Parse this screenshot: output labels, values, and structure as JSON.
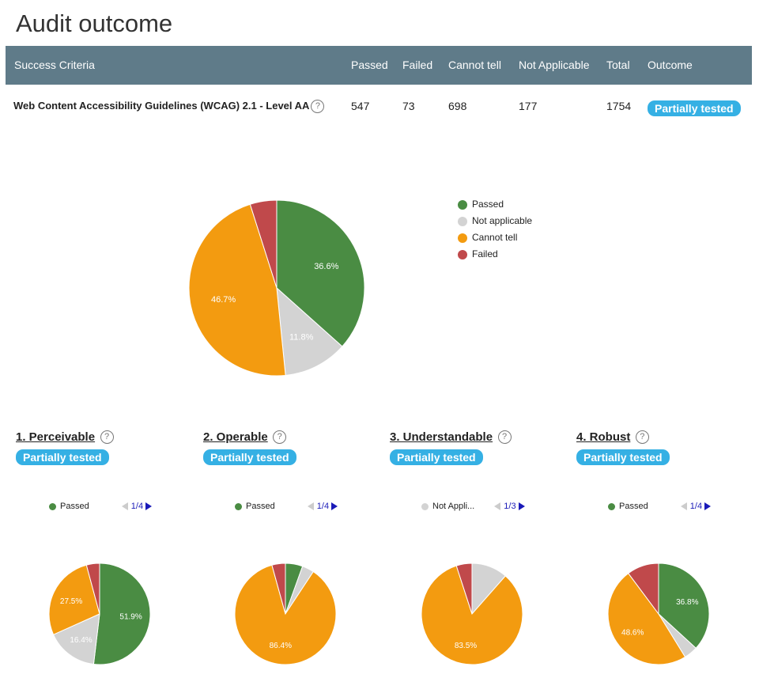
{
  "page": {
    "title": "Audit outcome"
  },
  "table": {
    "headers": {
      "criteria": "Success Criteria",
      "passed": "Passed",
      "failed": "Failed",
      "cannot_tell": "Cannot tell",
      "not_applicable": "Not Applicable",
      "total": "Total",
      "outcome": "Outcome"
    },
    "row": {
      "criteria": "Web Content Accessibility Guidelines (WCAG) 2.1 - Level AA",
      "passed": "547",
      "failed": "73",
      "cannot_tell": "698",
      "not_applicable": "177",
      "total": "1754",
      "outcome": "Partially tested"
    }
  },
  "help_glyph": "?",
  "colors": {
    "passed": "#4a8c43",
    "not_applicable": "#d3d3d3",
    "cannot_tell": "#f39b10",
    "failed": "#c0494b",
    "badge": "#35b0e4",
    "header": "#5f7b89"
  },
  "chart_data": [
    {
      "type": "pie",
      "id": "main",
      "legend": [
        "Passed",
        "Not applicable",
        "Cannot tell",
        "Failed"
      ],
      "slices": [
        {
          "name": "Passed",
          "value": 36.6,
          "label": "36.6%"
        },
        {
          "name": "Not applicable",
          "value": 11.8,
          "label": "11.8%"
        },
        {
          "name": "Cannot tell",
          "value": 46.7,
          "label": "46.7%"
        },
        {
          "name": "Failed",
          "value": 4.9,
          "label": ""
        }
      ]
    },
    {
      "type": "pie",
      "id": "perceivable",
      "slices": [
        {
          "name": "Passed",
          "value": 51.9,
          "label": "51.9%"
        },
        {
          "name": "Not applicable",
          "value": 16.4,
          "label": "16.4%"
        },
        {
          "name": "Cannot tell",
          "value": 27.5,
          "label": "27.5%"
        },
        {
          "name": "Failed",
          "value": 4.2,
          "label": ""
        }
      ]
    },
    {
      "type": "pie",
      "id": "operable",
      "slices": [
        {
          "name": "Passed",
          "value": 5.5,
          "label": ""
        },
        {
          "name": "Not applicable",
          "value": 3.8,
          "label": ""
        },
        {
          "name": "Cannot tell",
          "value": 86.4,
          "label": "86.4%"
        },
        {
          "name": "Failed",
          "value": 4.3,
          "label": ""
        }
      ]
    },
    {
      "type": "pie",
      "id": "understandable",
      "slices": [
        {
          "name": "Passed",
          "value": 0,
          "label": ""
        },
        {
          "name": "Not applicable",
          "value": 11.5,
          "label": ""
        },
        {
          "name": "Cannot tell",
          "value": 83.5,
          "label": "83.5%"
        },
        {
          "name": "Failed",
          "value": 5.0,
          "label": ""
        }
      ]
    },
    {
      "type": "pie",
      "id": "robust",
      "slices": [
        {
          "name": "Passed",
          "value": 36.8,
          "label": "36.8%"
        },
        {
          "name": "Not applicable",
          "value": 4.4,
          "label": ""
        },
        {
          "name": "Cannot tell",
          "value": 48.6,
          "label": "48.6%"
        },
        {
          "name": "Failed",
          "value": 10.2,
          "label": ""
        }
      ]
    }
  ],
  "principles": [
    {
      "title": "1. Perceivable",
      "outcome": "Partially tested",
      "legend_label": "Passed",
      "legend_color": "#4a8c43",
      "page": "1/4"
    },
    {
      "title": "2. Operable",
      "outcome": "Partially tested",
      "legend_label": "Passed",
      "legend_color": "#4a8c43",
      "page": "1/4"
    },
    {
      "title": "3. Understandable",
      "outcome": "Partially tested",
      "legend_label": "Not Appli...",
      "legend_color": "#d3d3d3",
      "page": "1/3"
    },
    {
      "title": "4. Robust",
      "outcome": "Partially tested",
      "legend_label": "Passed",
      "legend_color": "#4a8c43",
      "page": "1/4"
    }
  ]
}
